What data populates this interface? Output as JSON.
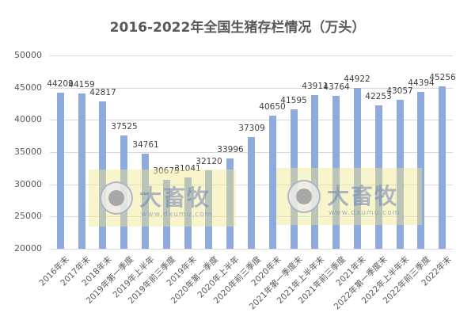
{
  "chart_data": {
    "type": "bar",
    "title": "2016-2022年全国生猪存栏情况（万头）",
    "xlabel": "",
    "ylabel": "",
    "ylim": [
      20000,
      50000
    ],
    "yticks": [
      "50000",
      "45000",
      "40000",
      "35000",
      "30000",
      "25000",
      "20000"
    ],
    "grid": true,
    "legend": "none",
    "categories": [
      "2016年末",
      "2017年末",
      "2018年末",
      "2019年第一季度",
      "2019年上半年",
      "2019年前三季度",
      "2019年末",
      "2020年第一季度",
      "2020年上半年",
      "2020年前三季度",
      "2020年末",
      "2021年第一季度末",
      "2021年上半年末",
      "2021年前三季度",
      "2021年末",
      "2022年第一季度末",
      "2022年上半年末",
      "2022年前三季度",
      "2022年末"
    ],
    "values": [
      44209,
      44159,
      42817,
      37525,
      34761,
      30675,
      31041,
      32120,
      33996,
      37309,
      40650,
      41595,
      43911,
      43764,
      44922,
      42253,
      43057,
      44394,
      45256
    ],
    "labels": [
      "44209",
      "44159",
      "42817",
      "37525",
      "34761",
      "30675",
      "31041",
      "32120",
      "33996",
      "37309",
      "40650",
      "41595",
      "43911",
      "43764",
      "44922",
      "42253",
      "43057",
      "44394",
      "45256"
    ],
    "bar_color": "#8faadc"
  },
  "watermark": {
    "text": "大畜牧",
    "url": "www.dxumu.com"
  }
}
